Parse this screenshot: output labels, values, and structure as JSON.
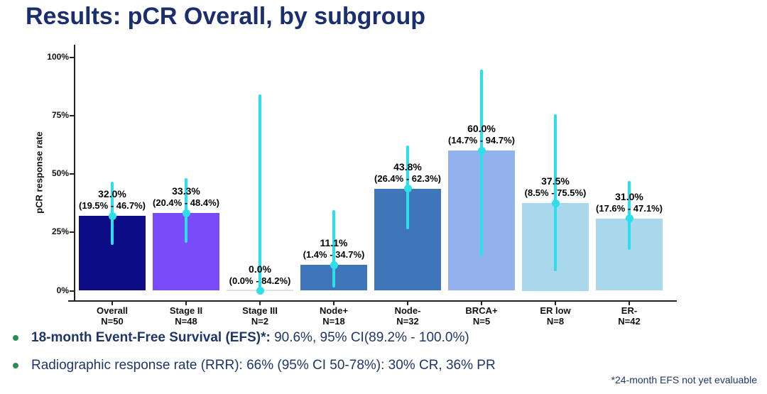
{
  "title": "Results: pCR Overall, by subgroup",
  "colors": {
    "title_text": "#1b2e6e",
    "body_text": "#1f3768",
    "bullet_marker": "#2e8b57",
    "axis": "#222222"
  },
  "chart_data": {
    "type": "bar",
    "title": "",
    "xlabel": "",
    "ylabel": "pCR response rate",
    "ylim": [
      0,
      100
    ],
    "yticks": [
      0,
      25,
      50,
      75,
      100
    ],
    "ytick_labels": [
      "0%",
      "25%",
      "50%",
      "75%",
      "100%"
    ],
    "grid": false,
    "legend": false,
    "categories": [
      "Overall",
      "Stage II",
      "Stage III",
      "Node+",
      "Node-",
      "BRCA+",
      "ER low",
      "ER-"
    ],
    "n_labels": [
      "N=50",
      "N=48",
      "N=2",
      "N=18",
      "N=32",
      "N=5",
      "N=8",
      "N=42"
    ],
    "values": [
      32.0,
      33.3,
      0.0,
      11.1,
      43.8,
      60.0,
      37.5,
      31.0
    ],
    "value_labels": [
      "32.0%",
      "33.3%",
      "0.0%",
      "11.1%",
      "43.8%",
      "60.0%",
      "37.5%",
      "31.0%"
    ],
    "ci_low": [
      19.5,
      20.4,
      0.0,
      1.4,
      26.4,
      14.7,
      8.5,
      17.6
    ],
    "ci_high": [
      46.7,
      48.4,
      84.2,
      34.7,
      62.3,
      94.7,
      75.5,
      47.1
    ],
    "ci_labels": [
      "(19.5% - 46.7%)",
      "(20.4% - 48.4%)",
      "(0.0% - 84.2%)",
      "(1.4% - 34.7%)",
      "(26.4% - 62.3%)",
      "(14.7% - 94.7%)",
      "(8.5% - 75.5%)",
      "(17.6% - 47.1%)"
    ],
    "bar_colors": [
      "#0c0c86",
      "#7a4bf8",
      "#e0e0e0",
      "#3f76b9",
      "#3f76b9",
      "#93b1ec",
      "#a9d8ed",
      "#a9d8ed"
    ],
    "error_bar_color": "#2edee9"
  },
  "bullets": [
    {
      "lead": "18-month Event-Free Survival (EFS)*:",
      "rest": " 90.6%, 95% CI(89.2% - 100.0%)"
    },
    {
      "lead": "",
      "rest": "Radiographic response rate (RRR): 66% (95% CI 50-78%): 30% CR, 36% PR"
    }
  ],
  "footnote": "*24-month EFS not yet evaluable"
}
